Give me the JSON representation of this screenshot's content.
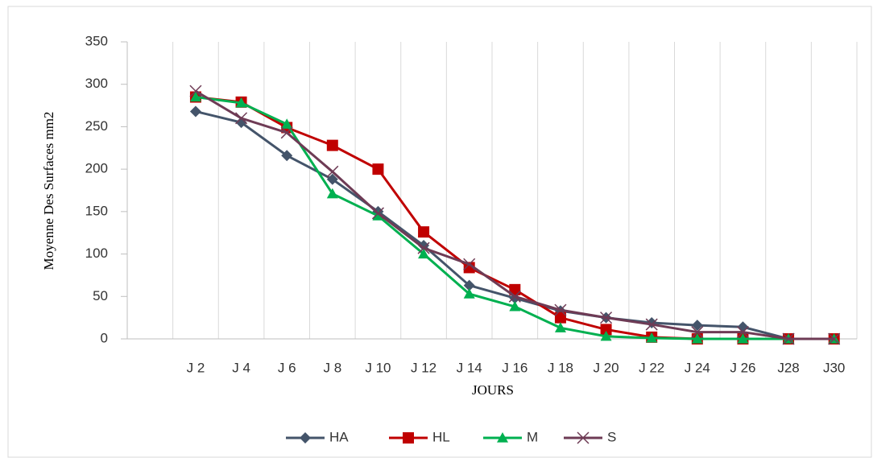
{
  "chart_data": {
    "type": "line",
    "y_label": "Moyenne Des Surfaces mm2",
    "x_label": "JOURS",
    "categories": [
      null,
      "J 2",
      "J 4",
      "J 6",
      "J 8",
      "J 10",
      "J 12",
      "J 14",
      "J 16",
      "J 18",
      "J 20",
      "J 22",
      "J 24",
      "J 26",
      "J28",
      "J30"
    ],
    "series": [
      {
        "name": "HA",
        "color": "#44546a",
        "marker": "diamond",
        "values": [
          null,
          268,
          255,
          216,
          188,
          150,
          110,
          63,
          48,
          33,
          25,
          19,
          16,
          14,
          0,
          0
        ]
      },
      {
        "name": "HL",
        "color": "#c00000",
        "marker": "square",
        "values": [
          null,
          285,
          279,
          249,
          228,
          200,
          126,
          84,
          58,
          25,
          11,
          2,
          0,
          0,
          0,
          0
        ]
      },
      {
        "name": "M",
        "color": "#00b050",
        "marker": "triangle",
        "values": [
          null,
          285,
          278,
          253,
          171,
          145,
          100,
          53,
          38,
          13,
          3,
          1,
          0,
          0,
          0,
          0
        ]
      },
      {
        "name": "S",
        "color": "#6e3b55",
        "marker": "x",
        "values": [
          null,
          292,
          260,
          243,
          197,
          148,
          107,
          88,
          50,
          34,
          25,
          17,
          8,
          8,
          0,
          0
        ]
      }
    ],
    "ylim": [
      0,
      350
    ],
    "yticks": [
      0,
      50,
      100,
      150,
      200,
      250,
      300,
      350
    ],
    "grid": true,
    "legend": "bottom"
  }
}
